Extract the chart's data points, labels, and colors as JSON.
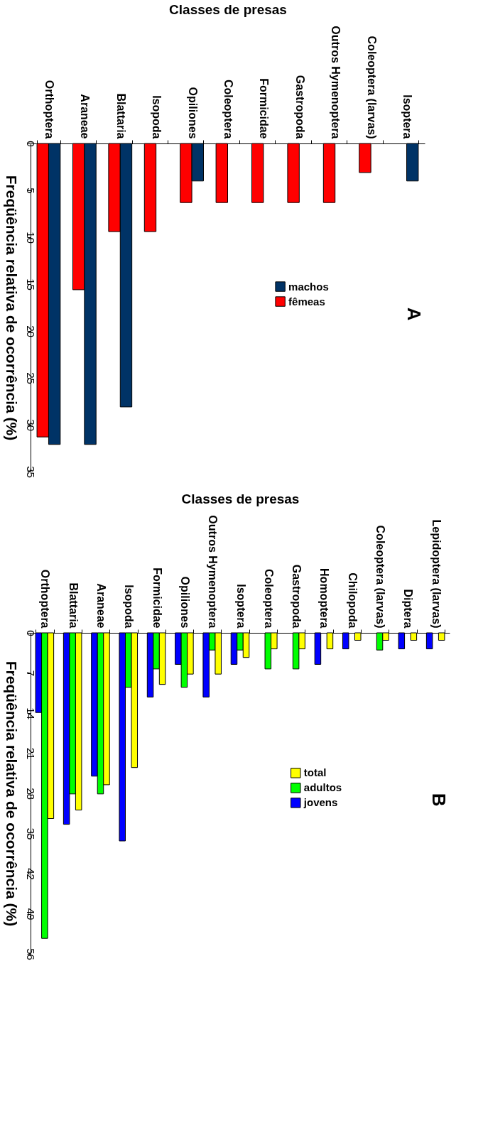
{
  "chart_data": [
    {
      "type": "bar",
      "title": "A",
      "xlabel": "Classes de presas",
      "ylabel": "Freqüência relativa de ocorrência (%)",
      "categories": [
        "Orthoptera",
        "Araneae",
        "Blattaria",
        "Isopoda",
        "Opiliones",
        "Coleoptera",
        "Formicidae",
        "Gastropoda",
        "Outros Hymenoptera",
        "Coleoptera (larvas)",
        "Isoptera"
      ],
      "series": [
        {
          "name": "fêmeas",
          "color": "#ff0000",
          "values": [
            31.3,
            15.6,
            9.4,
            9.4,
            6.3,
            6.3,
            6.3,
            6.3,
            6.3,
            3.1,
            null
          ]
        },
        {
          "name": "machos",
          "color": "#003366",
          "values": [
            32.1,
            32.1,
            28.1,
            null,
            4.0,
            null,
            null,
            null,
            null,
            null,
            4.0
          ]
        }
      ],
      "ylim": [
        35,
        0
      ],
      "yticks": [
        0,
        5,
        10,
        15,
        20,
        25,
        30,
        35
      ],
      "legend": "right"
    },
    {
      "type": "bar",
      "title": "B",
      "xlabel": "Classes de presas",
      "ylabel": "Freqüência relativa de ocorrência (%)",
      "categories": [
        "Orthoptera",
        "Blattaria",
        "Araneae",
        "Isopoda",
        "Formicidae",
        "Opiliones",
        "Outros Hymenoptera",
        "Isoptera",
        "Coleoptera",
        "Gastropoda",
        "Homoptera",
        "Chilopoda",
        "Coleoptera (larvas)",
        "Diptera",
        "Lepidoptera (larvas)"
      ],
      "series": [
        {
          "name": "jovens",
          "color": "#0000ff",
          "values": [
            13.9,
            33.4,
            25.0,
            36.3,
            11.2,
            5.5,
            11.2,
            5.5,
            null,
            null,
            5.5,
            2.8,
            null,
            2.8,
            2.8
          ]
        },
        {
          "name": "adultos",
          "color": "#00ff00",
          "values": [
            53.3,
            28.1,
            28.1,
            9.5,
            6.3,
            9.5,
            3.0,
            3.0,
            6.3,
            6.3,
            null,
            null,
            3.0,
            null,
            null
          ]
        },
        {
          "name": "total",
          "color": "#ffff00",
          "values": [
            32.4,
            30.9,
            26.5,
            23.5,
            9.0,
            7.2,
            7.2,
            4.3,
            2.8,
            2.8,
            2.8,
            1.3,
            1.3,
            1.3,
            1.3
          ]
        }
      ],
      "ylim": [
        56,
        0
      ],
      "yticks": [
        0,
        7,
        14,
        21,
        28,
        35,
        42,
        49,
        56
      ],
      "legend": "right"
    }
  ]
}
